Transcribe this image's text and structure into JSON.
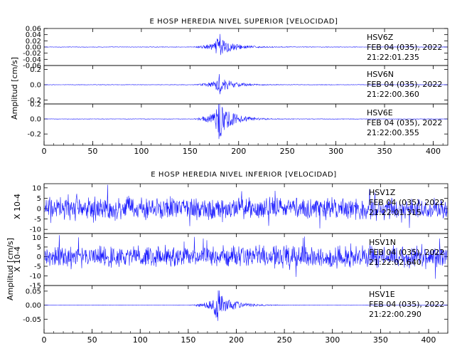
{
  "chart_data": [
    {
      "type": "line",
      "title": "E HOSP HEREDIA NIVEL SUPERIOR [VELOCIDAD]",
      "ylabel": "Amplitud [cm/s]",
      "xlabel": "",
      "xlim": [
        0,
        415
      ],
      "x_ticks": [
        "0",
        "50",
        "100",
        "150",
        "200",
        "250",
        "300",
        "350",
        "400"
      ],
      "grid": false,
      "panels": [
        {
          "name": "HSV6 Z",
          "station": "HSV6",
          "component": "Z",
          "date": "FEB 04 (035), 2022",
          "time": "21:22:01.235",
          "ylim": [
            -0.06,
            0.06
          ],
          "y_ticks": [
            "0.06",
            "0.04",
            "0.02",
            "0.00",
            "-0.02",
            "-0.04",
            "-0.06"
          ],
          "envelope": {
            "onset": 152,
            "peak_time": 180,
            "peak_amp": 0.045,
            "noise": 0.0008,
            "decay_end": 225
          }
        },
        {
          "name": "HSV6 N",
          "station": "HSV6",
          "component": "N",
          "date": "FEB 04 (035), 2022",
          "time": "21:22:00.360",
          "ylim": [
            -0.25,
            0.25
          ],
          "y_ticks": [
            "0.2",
            "0.0",
            "-0.2"
          ],
          "envelope": {
            "onset": 153,
            "peak_time": 180,
            "peak_amp": 0.14,
            "noise": 0.003,
            "decay_end": 225
          }
        },
        {
          "name": "HSV6 E",
          "station": "HSV6",
          "component": "E",
          "date": "FEB 04 (035), 2022",
          "time": "21:22:00.355",
          "ylim": [
            -0.35,
            0.2
          ],
          "y_ticks": [
            "0.2",
            "0.0",
            "-0.2"
          ],
          "envelope": {
            "onset": 153,
            "peak_time": 180,
            "peak_amp": 0.3,
            "noise": 0.003,
            "decay_end": 225
          }
        }
      ]
    },
    {
      "type": "line",
      "title": "E HOSP HEREDIA NIVEL INFERIOR [VELOCIDAD]",
      "ylabel": "Amplitud [cm/s]",
      "y_multiplier": "X 10-4",
      "xlabel": "",
      "xlim": [
        0,
        420
      ],
      "x_ticks": [
        "0",
        "50",
        "100",
        "150",
        "200",
        "250",
        "300",
        "350",
        "400"
      ],
      "grid": false,
      "panels": [
        {
          "name": "HSV1 Z",
          "station": "HSV1",
          "component": "Z",
          "date": "FEB 04 (035), 2022",
          "time": "21:22:01.315",
          "ylim": [
            -12,
            12
          ],
          "y_ticks": [
            "10",
            "5",
            "0",
            "-5",
            "-10"
          ],
          "envelope": {
            "onset": 0,
            "peak_time": 0,
            "peak_amp": 0,
            "noise": 4.5,
            "decay_end": 0
          }
        },
        {
          "name": "HSV1 N",
          "station": "HSV1",
          "component": "N",
          "date": "FEB 04 (035), 2022",
          "time": "21:22:02.640",
          "ylim": [
            -15,
            12
          ],
          "y_ticks": [
            "10",
            "5",
            "0",
            "-5",
            "-10",
            "-15"
          ],
          "envelope": {
            "onset": 0,
            "peak_time": 0,
            "peak_amp": 0,
            "noise": 4.5,
            "decay_end": 0
          }
        },
        {
          "name": "HSV1 E",
          "station": "HSV1",
          "component": "E",
          "date": "FEB 04 (035), 2022",
          "time": "21:22:00.290",
          "ylim": [
            -0.1,
            0.07
          ],
          "y_ticks": [
            "0.05",
            "0.00",
            "-0.05"
          ],
          "envelope": {
            "onset": 150,
            "peak_time": 180,
            "peak_amp": 0.06,
            "noise": 0.0005,
            "decay_end": 230
          }
        }
      ]
    }
  ],
  "colors": {
    "trace": "#1a1aff",
    "axes": "#000000",
    "background": "#ffffff"
  }
}
